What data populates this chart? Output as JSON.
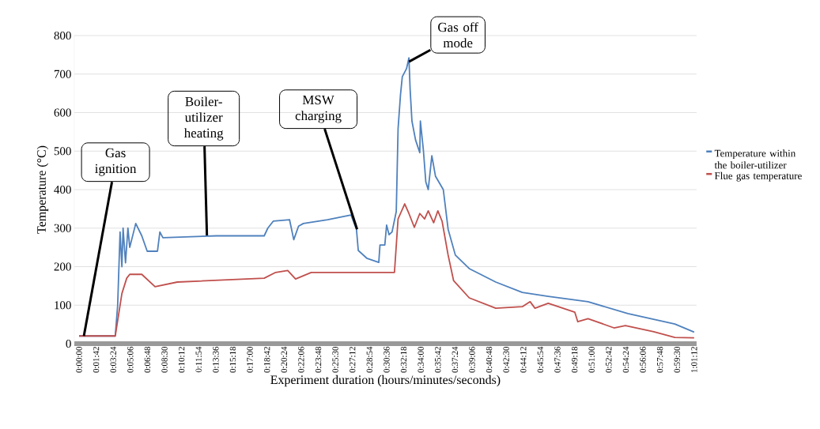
{
  "chart_data": {
    "type": "line",
    "xlabel": "Experiment duration (hours/minutes/seconds)",
    "ylabel": "Temperature (°C)",
    "xlim": [
      -0.008,
      1.024
    ],
    "ylim": [
      0,
      800
    ],
    "yticks": [
      0,
      100,
      200,
      300,
      400,
      500,
      600,
      700,
      800
    ],
    "xticks": [
      {
        "value": 0,
        "label": "0:00:00"
      },
      {
        "value": 0.0283,
        "label": "0:01:42"
      },
      {
        "value": 0.0567,
        "label": "0:03:24"
      },
      {
        "value": 0.085,
        "label": "0:05:06"
      },
      {
        "value": 0.1133,
        "label": "0:06:48"
      },
      {
        "value": 0.1417,
        "label": "0:08:30"
      },
      {
        "value": 0.17,
        "label": "0:10:12"
      },
      {
        "value": 0.1983,
        "label": "0:11:54"
      },
      {
        "value": 0.2267,
        "label": "0:13:36"
      },
      {
        "value": 0.255,
        "label": "0:15:18"
      },
      {
        "value": 0.2833,
        "label": "0:17:00"
      },
      {
        "value": 0.3117,
        "label": "0:18:42"
      },
      {
        "value": 0.34,
        "label": "0:20:24"
      },
      {
        "value": 0.3683,
        "label": "0:22:06"
      },
      {
        "value": 0.3967,
        "label": "0:23:48"
      },
      {
        "value": 0.425,
        "label": "0:25:30"
      },
      {
        "value": 0.4533,
        "label": "0:27:12"
      },
      {
        "value": 0.4817,
        "label": "0:28:54"
      },
      {
        "value": 0.51,
        "label": "0:30:36"
      },
      {
        "value": 0.5383,
        "label": "0:32:18"
      },
      {
        "value": 0.5667,
        "label": "0:34:00"
      },
      {
        "value": 0.595,
        "label": "0:35:42"
      },
      {
        "value": 0.6233,
        "label": "0:37:24"
      },
      {
        "value": 0.6517,
        "label": "0:39:06"
      },
      {
        "value": 0.68,
        "label": "0:40:48"
      },
      {
        "value": 0.7083,
        "label": "0:42:30"
      },
      {
        "value": 0.7367,
        "label": "0:44:12"
      },
      {
        "value": 0.765,
        "label": "0:45:54"
      },
      {
        "value": 0.7933,
        "label": "0:47:36"
      },
      {
        "value": 0.8217,
        "label": "0:49:18"
      },
      {
        "value": 0.85,
        "label": "0:51:00"
      },
      {
        "value": 0.8783,
        "label": "0:52:42"
      },
      {
        "value": 0.9067,
        "label": "0:54:24"
      },
      {
        "value": 0.935,
        "label": "0:56:06"
      },
      {
        "value": 0.9633,
        "label": "0:57:48"
      },
      {
        "value": 0.9917,
        "label": "0:59:30"
      },
      {
        "value": 1.02,
        "label": "1:01:12"
      }
    ],
    "grid": "y",
    "legend": "right",
    "annotations": [
      {
        "text": "Gas ignition",
        "x": 0.008,
        "y": 20
      },
      {
        "text": "Boiler-utilizer heating",
        "x": 0.212,
        "y": 281
      },
      {
        "text": "MSW charging",
        "x": 0.461,
        "y": 297
      },
      {
        "text": "Gas off mode",
        "x": 0.547,
        "y": 732
      }
    ],
    "series": [
      {
        "name": "Temperature within the boiler-utilizer",
        "color": "#4f81bd",
        "x": [
          0,
          0.06,
          0.064,
          0.068,
          0.071,
          0.073,
          0.077,
          0.081,
          0.084,
          0.094,
          0.104,
          0.113,
          0.13,
          0.134,
          0.139,
          0.228,
          0.307,
          0.313,
          0.322,
          0.349,
          0.356,
          0.364,
          0.372,
          0.412,
          0.451,
          0.46,
          0.463,
          0.477,
          0.497,
          0.499,
          0.507,
          0.51,
          0.514,
          0.519,
          0.526,
          0.529,
          0.533,
          0.536,
          0.543,
          0.547,
          0.549,
          0.552,
          0.558,
          0.565,
          0.566,
          0.571,
          0.575,
          0.579,
          0.585,
          0.591,
          0.604,
          0.612,
          0.624,
          0.647,
          0.691,
          0.735,
          0.778,
          0.844,
          0.91,
          0.988,
          1.02
        ],
        "values": [
          20,
          20,
          100,
          290,
          200,
          300,
          210,
          300,
          250,
          312,
          280,
          240,
          240,
          290,
          275,
          280,
          280,
          300,
          318,
          322,
          270,
          305,
          312,
          322,
          334,
          297,
          242,
          222,
          211,
          256,
          256,
          308,
          283,
          290,
          343,
          558,
          646,
          693,
          714,
          742,
          660,
          578,
          529,
          496,
          578,
          502,
          420,
          400,
          488,
          435,
          400,
          297,
          230,
          195,
          160,
          133,
          123,
          109,
          78,
          51,
          30
        ]
      },
      {
        "name": "Flue gas temperature",
        "color": "#c0504d",
        "x": [
          0,
          0.06,
          0.064,
          0.071,
          0.079,
          0.084,
          0.104,
          0.126,
          0.163,
          0.307,
          0.326,
          0.346,
          0.359,
          0.385,
          0.523,
          0.529,
          0.54,
          0.547,
          0.556,
          0.565,
          0.573,
          0.579,
          0.588,
          0.595,
          0.602,
          0.612,
          0.621,
          0.647,
          0.691,
          0.735,
          0.748,
          0.756,
          0.778,
          0.822,
          0.827,
          0.844,
          0.887,
          0.906,
          0.953,
          0.988,
          1.02
        ],
        "values": [
          20,
          20,
          60,
          130,
          170,
          180,
          180,
          148,
          160,
          170,
          185,
          190,
          168,
          185,
          185,
          324,
          363,
          338,
          302,
          338,
          324,
          345,
          314,
          345,
          318,
          230,
          164,
          119,
          92,
          96,
          109,
          92,
          105,
          82,
          57,
          65,
          41,
          47,
          31,
          16,
          15
        ]
      }
    ]
  }
}
